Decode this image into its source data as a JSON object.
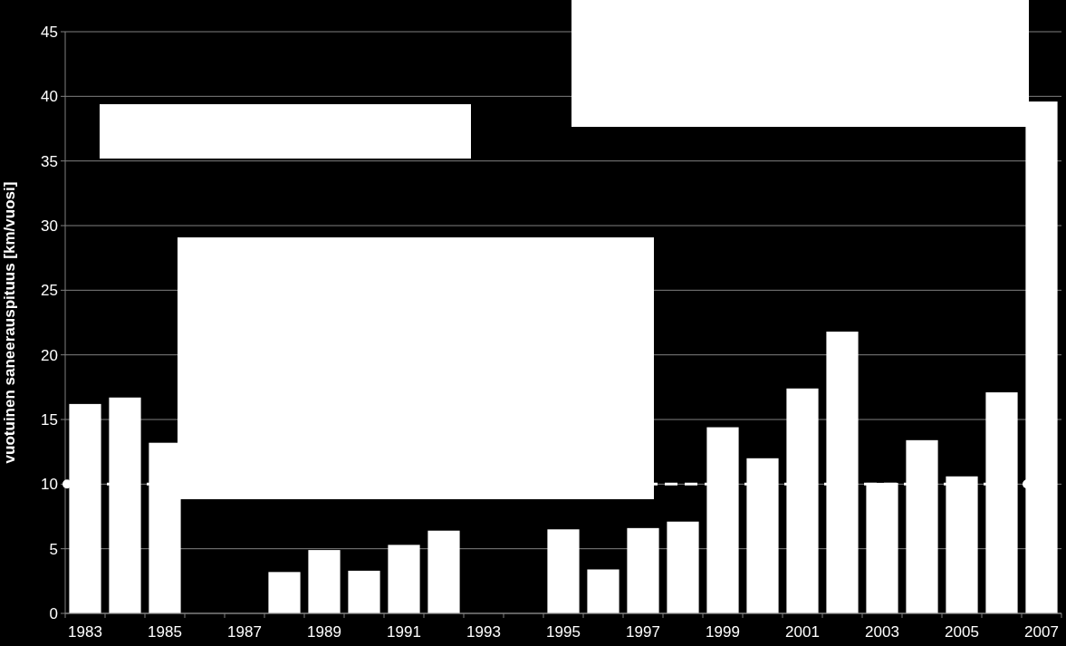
{
  "chart_data": {
    "type": "bar",
    "ylabel": "vuotuinen saneerauspituus [km/vuosi]",
    "categories": [
      "1983",
      null,
      "1985",
      null,
      "1987",
      null,
      "1989",
      null,
      "1991",
      null,
      "1993",
      null,
      "1995",
      null,
      "1997",
      null,
      "1999",
      null,
      "2001",
      null,
      "2003",
      null,
      "2005",
      null,
      "2007"
    ],
    "values": [
      16.2,
      16.7,
      13.2,
      null,
      null,
      3.2,
      4.9,
      3.3,
      5.3,
      6.4,
      null,
      null,
      6.5,
      3.4,
      6.6,
      7.1,
      14.4,
      12.0,
      17.4,
      21.8,
      10.1,
      13.4,
      10.6,
      17.1,
      39.6
    ],
    "color": "#ffffff",
    "ylim": [
      0,
      45
    ],
    "yticks": [
      0,
      5,
      10,
      15,
      20,
      25,
      30,
      35,
      40,
      45
    ],
    "grid": "y",
    "ref_lines": [
      {
        "axis": "y",
        "value": 10,
        "color": "#ffffff",
        "line_style": "dashed"
      }
    ]
  }
}
